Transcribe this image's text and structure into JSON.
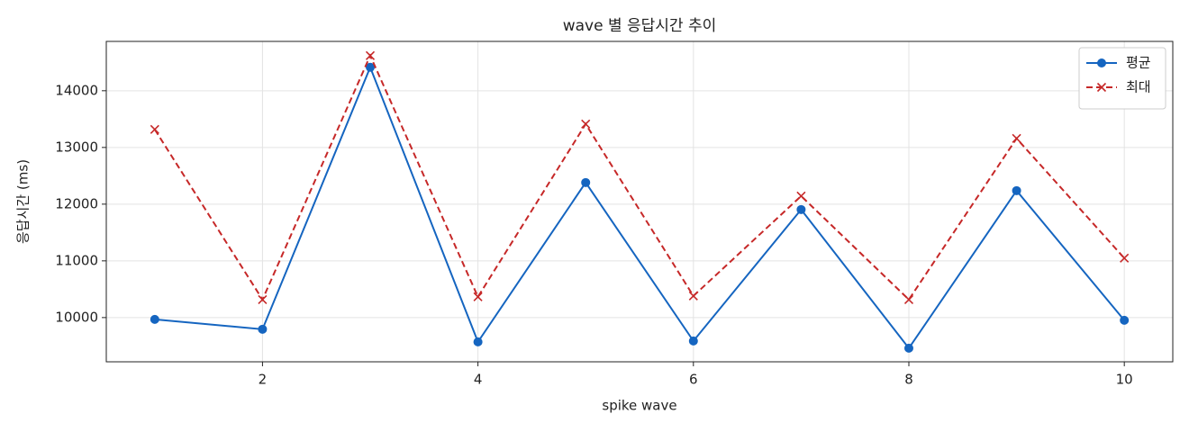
{
  "chart_data": {
    "type": "line",
    "title": "wave 별 응답시간 추이",
    "xlabel": "spike wave",
    "ylabel": "응답시간 (ms)",
    "x": [
      1,
      2,
      3,
      4,
      5,
      6,
      7,
      8,
      9,
      10
    ],
    "series": [
      {
        "name": "평균",
        "color": "#1565c0",
        "linestyle": "solid",
        "marker": "circle",
        "values": [
          9968,
          9794,
          14413,
          9571,
          12381,
          9587,
          11905,
          9460,
          12238,
          9952
        ]
      },
      {
        "name": "최대",
        "color": "#c62828",
        "linestyle": "dashed",
        "marker": "x",
        "values": [
          13317,
          10317,
          14619,
          10365,
          13413,
          10381,
          12143,
          10317,
          13159,
          11048
        ]
      }
    ],
    "xlim": [
      0.55,
      10.45
    ],
    "xticks": [
      2,
      4,
      6,
      8,
      10
    ],
    "ylim": [
      9220,
      14870
    ],
    "yticks": [
      10000,
      11000,
      12000,
      13000,
      14000
    ],
    "grid": true,
    "legend": "upper right"
  }
}
